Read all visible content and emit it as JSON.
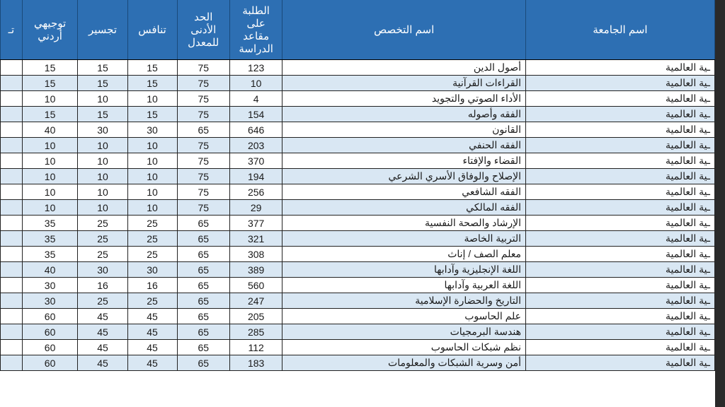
{
  "header": {
    "university": "اسم الجامعة",
    "major": "اسم التخصص",
    "seats": "الطلبة على مقاعد الدراسة",
    "min_grade": "الحد الأدنى للمعدل",
    "compete": "تنافس",
    "bridge": "تجسير",
    "tawjihi": "توجيهي أردني",
    "edge": "تـ"
  },
  "cols": {
    "university_w": 244,
    "major_w": 314,
    "seats_w": 68,
    "min_grade_w": 68,
    "compete_w": 64,
    "bridge_w": 64,
    "tawjihi_w": 72,
    "edge_w": 28
  },
  "colors": {
    "header_bg": "#2d6fb3",
    "header_fg": "#ffffff",
    "row_odd_bg": "#ffffff",
    "row_even_bg": "#d9e7f3",
    "border": "#222222"
  },
  "university_label": "ـية العالمية",
  "rows": [
    {
      "major": "أصول الدين",
      "seats": 123,
      "min": 75,
      "compete": 15,
      "bridge": 15,
      "tawjihi": 15
    },
    {
      "major": "القراءات القرآنية",
      "seats": 10,
      "min": 75,
      "compete": 15,
      "bridge": 15,
      "tawjihi": 15
    },
    {
      "major": "الأداء الصوتي والتجويد",
      "seats": 4,
      "min": 75,
      "compete": 10,
      "bridge": 10,
      "tawjihi": 10
    },
    {
      "major": "الفقه وأصوله",
      "seats": 154,
      "min": 75,
      "compete": 15,
      "bridge": 15,
      "tawjihi": 15
    },
    {
      "major": "القانون",
      "seats": 646,
      "min": 65,
      "compete": 30,
      "bridge": 30,
      "tawjihi": 40
    },
    {
      "major": "الفقه الحنفي",
      "seats": 203,
      "min": 75,
      "compete": 10,
      "bridge": 10,
      "tawjihi": 10
    },
    {
      "major": "القضاء والإفتاء",
      "seats": 370,
      "min": 75,
      "compete": 10,
      "bridge": 10,
      "tawjihi": 10
    },
    {
      "major": "الإصلاح والوفاق الأسري الشرعي",
      "seats": 194,
      "min": 75,
      "compete": 10,
      "bridge": 10,
      "tawjihi": 10
    },
    {
      "major": "الفقه الشافعي",
      "seats": 256,
      "min": 75,
      "compete": 10,
      "bridge": 10,
      "tawjihi": 10
    },
    {
      "major": "الفقه المالكي",
      "seats": 29,
      "min": 75,
      "compete": 10,
      "bridge": 10,
      "tawjihi": 10
    },
    {
      "major": "الإرشاد والصحة النفسية",
      "seats": 377,
      "min": 65,
      "compete": 25,
      "bridge": 25,
      "tawjihi": 35
    },
    {
      "major": "التربية الخاصة",
      "seats": 321,
      "min": 65,
      "compete": 25,
      "bridge": 25,
      "tawjihi": 35
    },
    {
      "major": "معلم الصف / إناث",
      "seats": 308,
      "min": 65,
      "compete": 25,
      "bridge": 25,
      "tawjihi": 35
    },
    {
      "major": "اللغة الإنجليزية وآدابها",
      "seats": 389,
      "min": 65,
      "compete": 30,
      "bridge": 30,
      "tawjihi": 40
    },
    {
      "major": "اللغة العربية وآدابها",
      "seats": 560,
      "min": 65,
      "compete": 16,
      "bridge": 16,
      "tawjihi": 30
    },
    {
      "major": "التاريخ والحضارة الإسلامية",
      "seats": 247,
      "min": 65,
      "compete": 25,
      "bridge": 25,
      "tawjihi": 30
    },
    {
      "major": "علم الحاسوب",
      "seats": 205,
      "min": 65,
      "compete": 45,
      "bridge": 45,
      "tawjihi": 60
    },
    {
      "major": "هندسة البرمجيات",
      "seats": 285,
      "min": 65,
      "compete": 45,
      "bridge": 45,
      "tawjihi": 60
    },
    {
      "major": "نظم شبكات الحاسوب",
      "seats": 112,
      "min": 65,
      "compete": 45,
      "bridge": 45,
      "tawjihi": 60
    },
    {
      "major": "أمن وسرية الشبكات والمعلومات",
      "seats": 183,
      "min": 65,
      "compete": 45,
      "bridge": 45,
      "tawjihi": 60
    }
  ]
}
